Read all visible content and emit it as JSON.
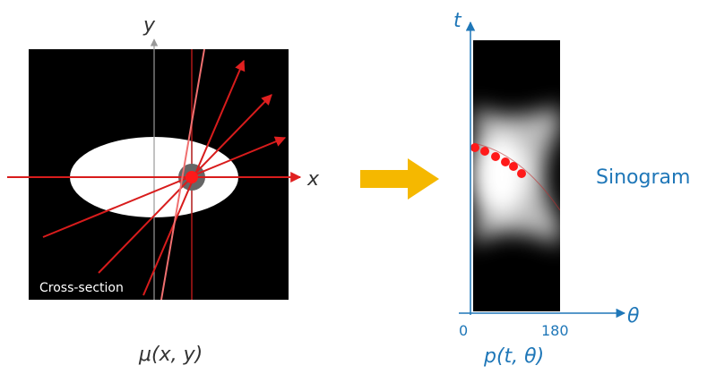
{
  "left": {
    "y_axis_label": "y",
    "x_axis_label": "x",
    "section_label": "Cross-section",
    "caption": "μ(x, y)"
  },
  "right": {
    "t_axis_label": "t",
    "theta_axis_label": "θ",
    "theta_start": "0",
    "theta_end": "180",
    "caption": "p(t, θ)",
    "title": "Sinogram"
  }
}
